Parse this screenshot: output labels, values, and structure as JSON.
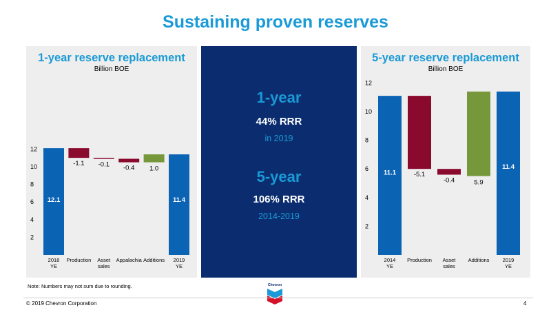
{
  "title": "Sustaining proven reserves",
  "left_panel": {
    "title": "1-year reserve replacement",
    "subtitle": "Billion BOE"
  },
  "right_panel": {
    "title": "5-year reserve replacement",
    "subtitle": "Billion BOE"
  },
  "middle_panel": {
    "one_year": {
      "heading": "1-year",
      "rrr": "44% RRR",
      "period": "in 2019"
    },
    "five_year": {
      "heading": "5-year",
      "rrr": "106% RRR",
      "period": "2014-2019"
    }
  },
  "note": "Note: Numbers may not sum due to rounding.",
  "footer": {
    "copyright": "© 2019 Chevron Corporation",
    "page_number": "4",
    "logo_text": "Chevron"
  },
  "colors": {
    "blue": "#0b63b4",
    "red": "#8a0a2e",
    "green": "#77983a",
    "title_blue": "#1a9ad6",
    "navy": "#0b2d6f"
  },
  "chart_data": [
    {
      "type": "bar",
      "subtype": "waterfall",
      "title": "1-year reserve replacement",
      "ylabel": "Billion BOE",
      "ylim": [
        0,
        12
      ],
      "yticks": [
        2,
        4,
        6,
        8,
        10,
        12
      ],
      "categories": [
        [
          "2018",
          "YE"
        ],
        [
          "Production"
        ],
        [
          "Asset",
          "sales"
        ],
        [
          "Appalachia"
        ],
        [
          "Additions"
        ],
        [
          "2019",
          "YE"
        ]
      ],
      "bars": [
        {
          "kind": "total",
          "start": 0,
          "end": 12.1,
          "label": "12.1",
          "color": "blue"
        },
        {
          "kind": "delta",
          "start": 12.1,
          "end": 11.0,
          "label": "-1.1",
          "color": "red"
        },
        {
          "kind": "delta",
          "start": 11.0,
          "end": 10.9,
          "label": "-0.1",
          "color": "red"
        },
        {
          "kind": "delta",
          "start": 10.9,
          "end": 10.5,
          "label": "-0.4",
          "color": "red"
        },
        {
          "kind": "delta",
          "start": 10.5,
          "end": 11.4,
          "label": "1.0",
          "color": "green"
        },
        {
          "kind": "total",
          "start": 0,
          "end": 11.4,
          "label": "11.4",
          "color": "blue"
        }
      ]
    },
    {
      "type": "bar",
      "subtype": "waterfall",
      "title": "5-year reserve replacement",
      "ylabel": "Billion BOE",
      "ylim": [
        0,
        12
      ],
      "yticks": [
        2,
        4,
        6,
        8,
        10,
        12
      ],
      "categories": [
        [
          "2014",
          "YE"
        ],
        [
          "Production"
        ],
        [
          "Asset",
          "sales"
        ],
        [
          "Additions"
        ],
        [
          "2019",
          "YE"
        ]
      ],
      "bars": [
        {
          "kind": "total",
          "start": 0,
          "end": 11.1,
          "label": "11.1",
          "color": "blue"
        },
        {
          "kind": "delta",
          "start": 11.1,
          "end": 6.0,
          "label": "-5.1",
          "color": "red"
        },
        {
          "kind": "delta",
          "start": 6.0,
          "end": 5.6,
          "label": "-0.4",
          "color": "red"
        },
        {
          "kind": "delta",
          "start": 5.5,
          "end": 11.4,
          "label": "5.9",
          "color": "green"
        },
        {
          "kind": "total",
          "start": 0,
          "end": 11.4,
          "label": "11.4",
          "color": "blue"
        }
      ]
    }
  ]
}
